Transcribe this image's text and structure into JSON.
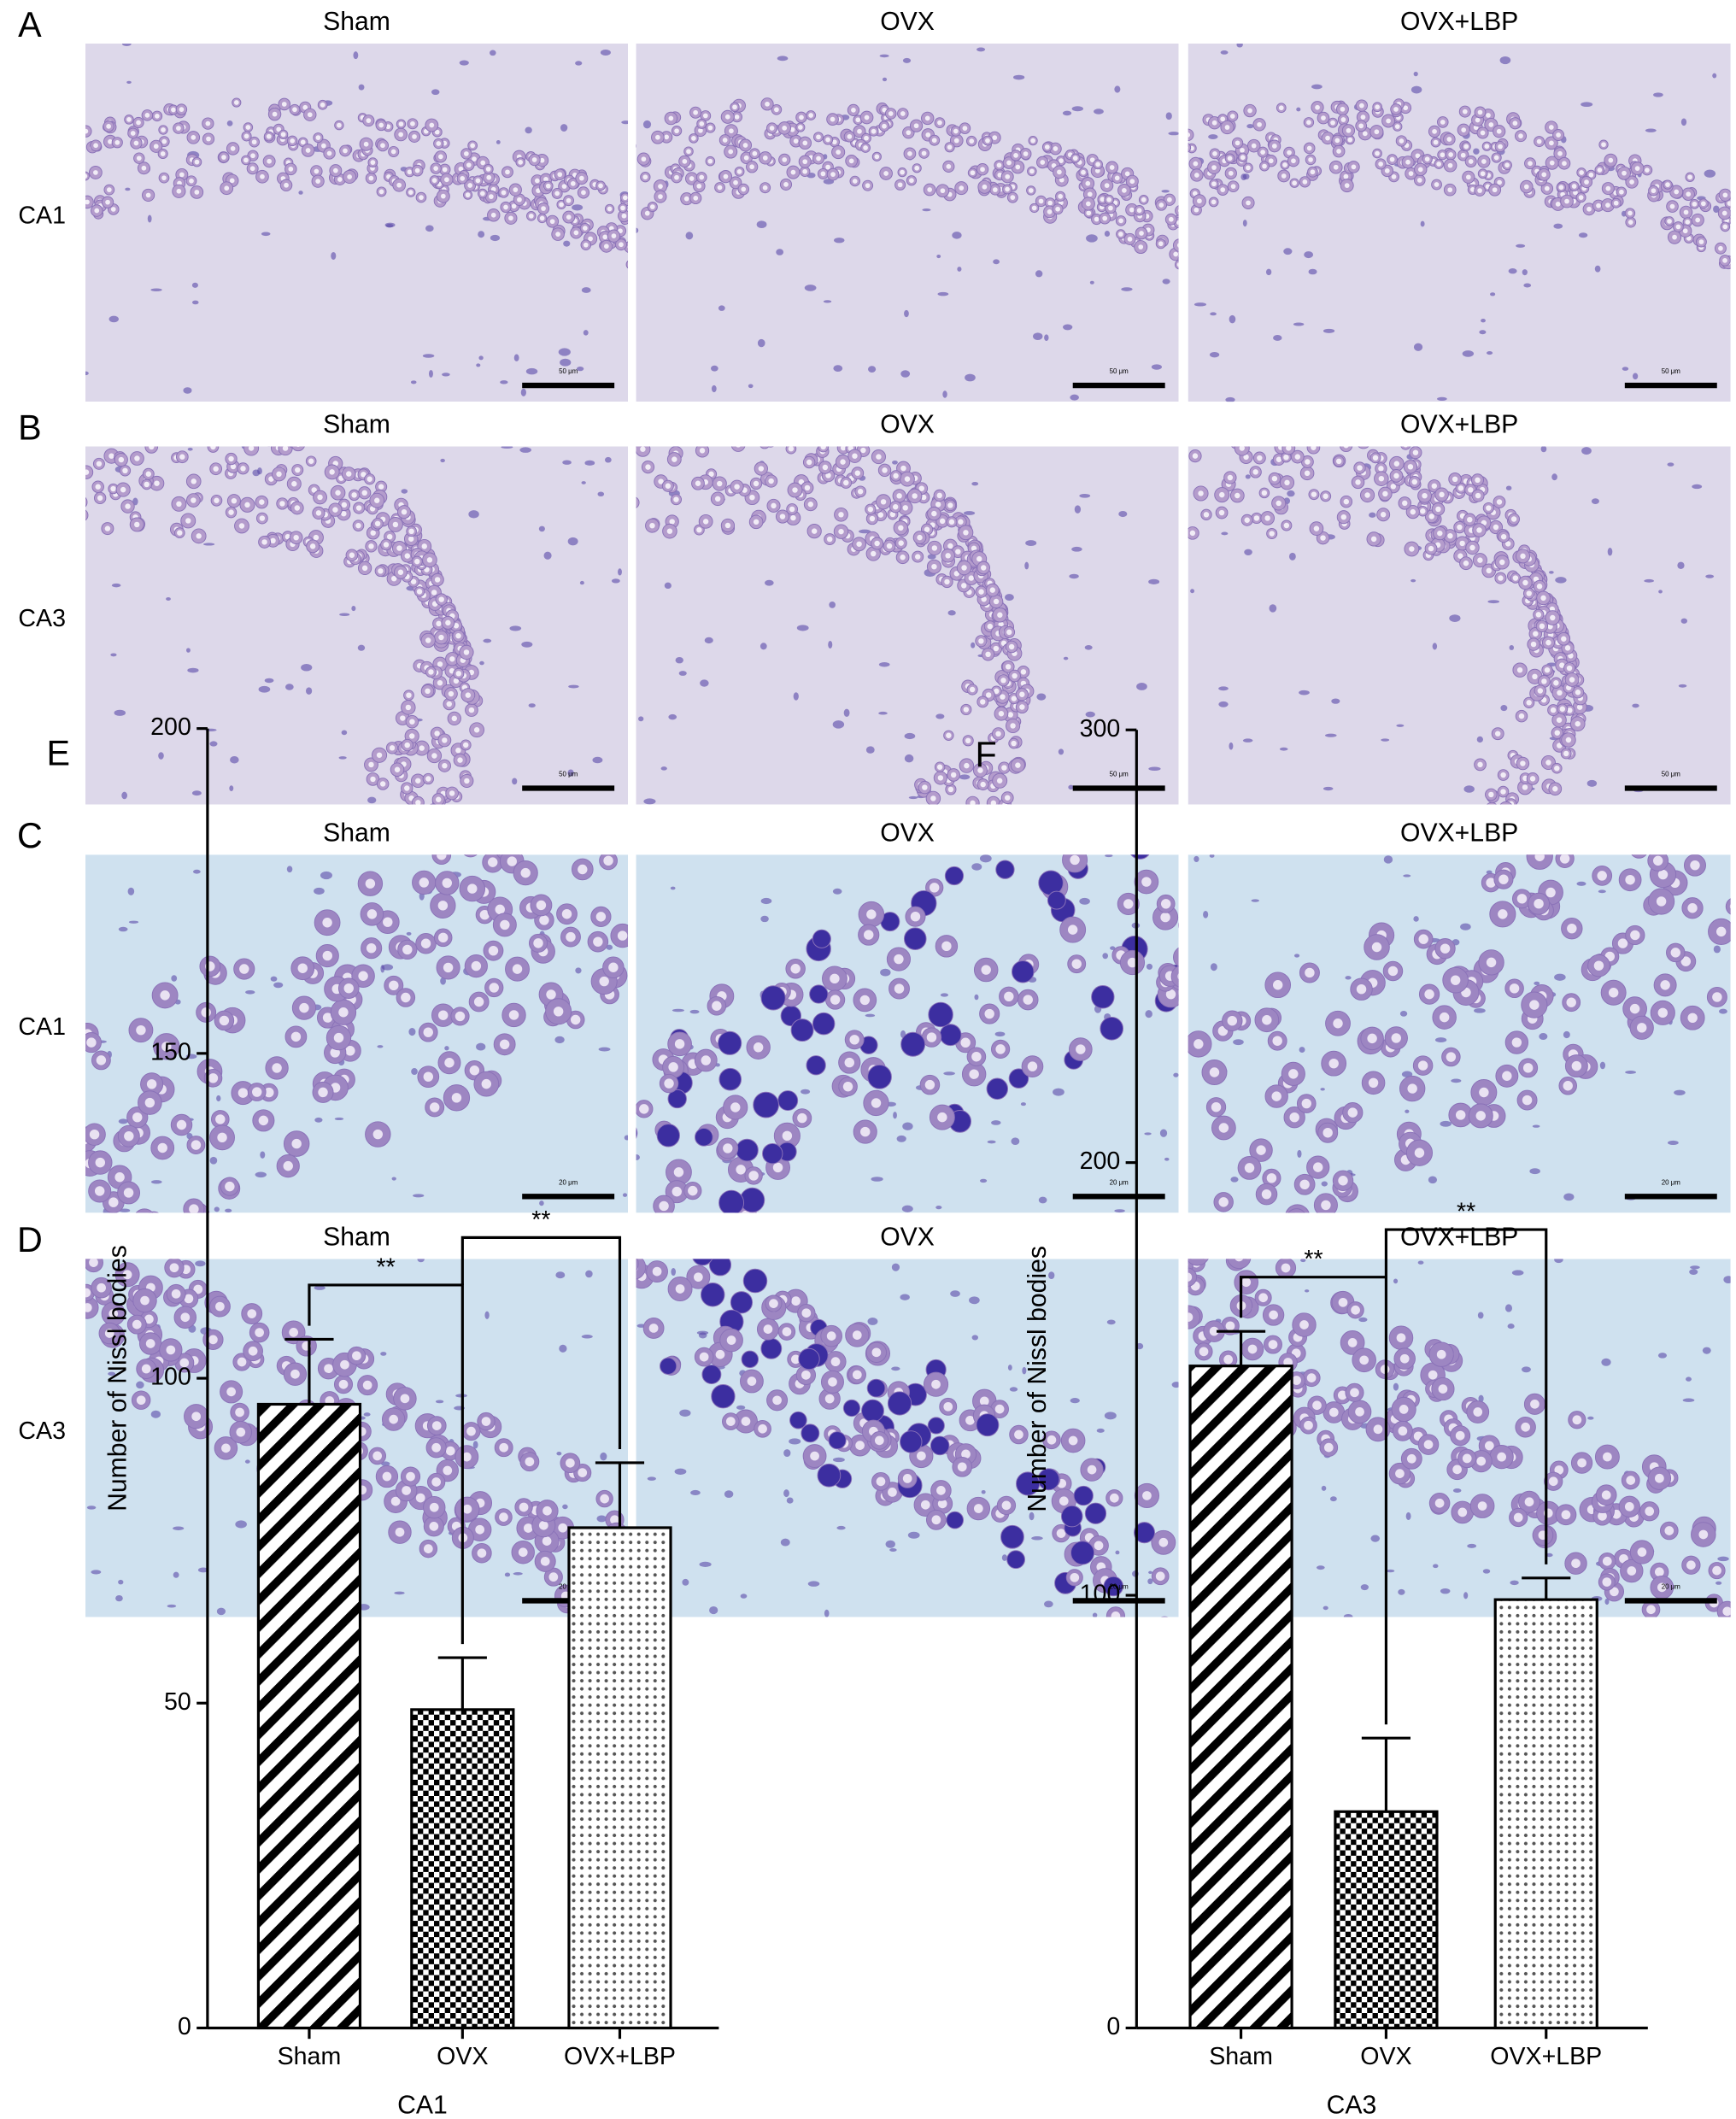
{
  "figure": {
    "rows": [
      {
        "letter": "A",
        "region": "CA1",
        "columns": [
          "Sham",
          "OVX",
          "OVX+LBP"
        ],
        "scale_bar": "50 μm"
      },
      {
        "letter": "B",
        "region": "CA3",
        "columns": [
          "Sham",
          "OVX",
          "OVX+LBP"
        ],
        "scale_bar": "50 μm"
      },
      {
        "letter": "C",
        "region": "CA1",
        "columns": [
          "Sham",
          "OVX",
          "OVX+LBP"
        ],
        "scale_bar": "20 μm"
      },
      {
        "letter": "D",
        "region": "CA3",
        "columns": [
          "Sham",
          "OVX",
          "OVX+LBP"
        ],
        "scale_bar": "20 μm"
      }
    ]
  },
  "chart_data": [
    {
      "type": "bar",
      "panel_label": "E",
      "ylabel": "Number of Nissl bodies",
      "xlabel": "CA1",
      "categories": [
        "Sham",
        "OVX",
        "OVX+LBP"
      ],
      "values": [
        96,
        49,
        77
      ],
      "errors": [
        10,
        8,
        10
      ],
      "patterns": [
        "diagonal",
        "checkerboard",
        "dotted"
      ],
      "color": "#000000",
      "ylim": [
        0,
        200
      ],
      "yticks": [
        0,
        50,
        100,
        150,
        200
      ],
      "annotations": [
        {
          "text": "**",
          "between": [
            "Sham",
            "OVX"
          ]
        },
        {
          "text": "**",
          "between": [
            "OVX",
            "OVX+LBP"
          ]
        }
      ]
    },
    {
      "type": "bar",
      "panel_label": "F",
      "ylabel": "Number of Nissl bodies",
      "xlabel": "CA3",
      "categories": [
        "Sham",
        "OVX",
        "OVX+LBP"
      ],
      "values": [
        153,
        50,
        99
      ],
      "errors": [
        8,
        17,
        5
      ],
      "patterns": [
        "diagonal",
        "checkerboard",
        "dotted"
      ],
      "color": "#000000",
      "ylim": [
        0,
        300
      ],
      "yticks": [
        0,
        100,
        200,
        300
      ],
      "annotations": [
        {
          "text": "**",
          "between": [
            "Sham",
            "OVX"
          ]
        },
        {
          "text": "**",
          "between": [
            "OVX",
            "OVX+LBP"
          ]
        }
      ]
    }
  ]
}
